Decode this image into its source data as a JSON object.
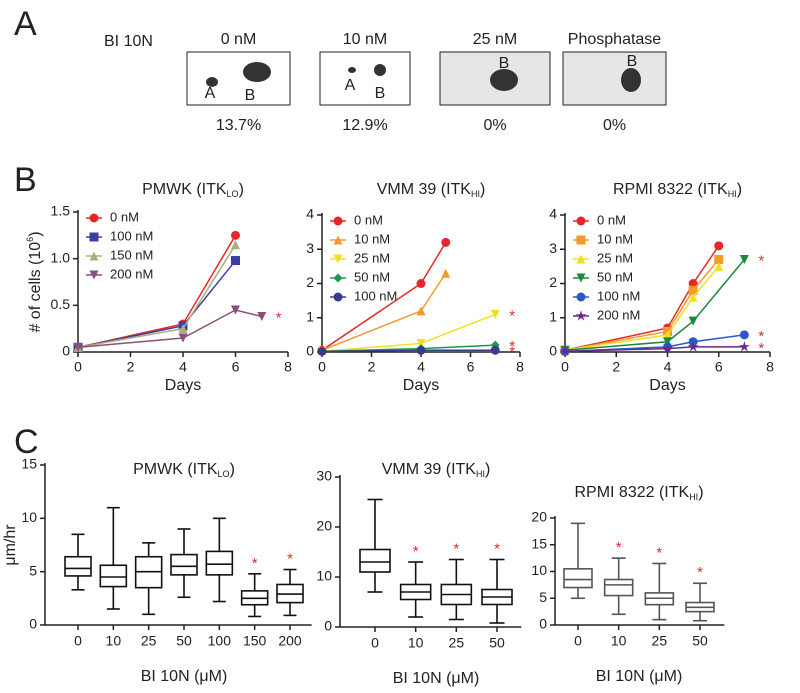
{
  "panel_a": {
    "label": "A",
    "treatment": "BI 10N",
    "blots": [
      {
        "condition": "0 nM",
        "bands": [
          "A",
          "B"
        ],
        "percent": "13.7%"
      },
      {
        "condition": "10 nM",
        "bands": [
          "A",
          "B"
        ],
        "percent": "12.9%"
      },
      {
        "condition": "25 nM",
        "bands": [
          "B"
        ],
        "percent": "0%"
      },
      {
        "condition": "Phosphatase",
        "bands": [
          "B"
        ],
        "percent": "0%"
      }
    ]
  },
  "panel_labels": [
    "B",
    "C"
  ],
  "chart_data": [
    {
      "type": "line",
      "title_parts": [
        "PMWK (ITK",
        "LO",
        ")"
      ],
      "ylabel_parts": [
        "# of cells (10",
        "6",
        ")"
      ],
      "xlabel": "Days",
      "xlim": [
        0,
        8
      ],
      "xticks": [
        0,
        2,
        4,
        6,
        8
      ],
      "ylim": [
        0,
        1.5
      ],
      "yticks": [
        0,
        0.5,
        {
          "value": 1,
          "label": "1.0"
        },
        1.5
      ],
      "legend": "upper left",
      "significance_color": "#e8262a",
      "series": [
        {
          "name": "0 nM",
          "color": "#e8262a",
          "marker": "circle",
          "x": [
            0,
            4,
            6
          ],
          "values": [
            0.05,
            0.3,
            1.25
          ],
          "significance": null
        },
        {
          "name": "100 nM",
          "color": "#3d3da8",
          "marker": "square",
          "x": [
            0,
            4,
            6
          ],
          "values": [
            0.05,
            0.28,
            0.98
          ],
          "significance": null
        },
        {
          "name": "150 nM",
          "color": "#a8b07a",
          "marker": "triangle",
          "x": [
            0,
            4,
            6
          ],
          "values": [
            0.05,
            0.25,
            1.15
          ],
          "significance": null
        },
        {
          "name": "200 nM",
          "color": "#8b4f7a",
          "marker": "down-triangle",
          "x": [
            0,
            4,
            6,
            7
          ],
          "values": [
            0.05,
            0.15,
            0.45,
            0.38
          ],
          "significance": "*"
        }
      ]
    },
    {
      "type": "line",
      "title_parts": [
        "VMM 39 (ITK",
        "HI",
        ")"
      ],
      "xlabel": "Days",
      "xlim": [
        0,
        8
      ],
      "xticks": [
        0,
        2,
        4,
        6,
        8
      ],
      "ylim": [
        0,
        4
      ],
      "yticks": [
        0,
        1,
        2,
        3,
        4
      ],
      "legend": "upper left",
      "significance_color": "#e8262a",
      "series": [
        {
          "name": "0 nM",
          "color": "#e8262a",
          "marker": "circle",
          "x": [
            0,
            4,
            5
          ],
          "values": [
            0.05,
            2.0,
            3.2
          ],
          "significance": null
        },
        {
          "name": "10 nM",
          "color": "#f39a2e",
          "marker": "triangle",
          "x": [
            0,
            4,
            5
          ],
          "values": [
            0.05,
            1.2,
            2.3
          ],
          "significance": null
        },
        {
          "name": "25 nM",
          "color": "#f0e020",
          "marker": "down-triangle",
          "x": [
            0,
            4,
            7
          ],
          "values": [
            0.02,
            0.25,
            1.1
          ],
          "significance": "*"
        },
        {
          "name": "50 nM",
          "color": "#1a9a50",
          "marker": "diamond",
          "x": [
            0,
            4,
            7
          ],
          "values": [
            0.02,
            0.1,
            0.2
          ],
          "significance": "*"
        },
        {
          "name": "100 nM",
          "color": "#3a3a8a",
          "marker": "circle",
          "x": [
            0,
            4,
            7
          ],
          "values": [
            0.02,
            0.05,
            0.05
          ],
          "significance": "*"
        }
      ]
    },
    {
      "type": "line",
      "title_parts": [
        "RPMI 8322 (ITK",
        "HI",
        ")"
      ],
      "xlabel": "Days",
      "xlim": [
        0,
        8
      ],
      "xticks": [
        0,
        2,
        4,
        6,
        8
      ],
      "ylim": [
        0,
        4
      ],
      "yticks": [
        0,
        1,
        2,
        3,
        4
      ],
      "legend": "upper left",
      "significance_color": "#e8262a",
      "series": [
        {
          "name": "0 nM",
          "color": "#e8262a",
          "marker": "circle",
          "x": [
            0,
            4,
            5,
            6
          ],
          "values": [
            0.05,
            0.7,
            2.0,
            3.1
          ],
          "significance": null
        },
        {
          "name": "10 nM",
          "color": "#f39a2e",
          "marker": "square",
          "x": [
            0,
            4,
            5,
            6
          ],
          "values": [
            0.05,
            0.6,
            1.8,
            2.7
          ],
          "significance": null
        },
        {
          "name": "25 nM",
          "color": "#f0e020",
          "marker": "triangle",
          "x": [
            0,
            4,
            5,
            6
          ],
          "values": [
            0.05,
            0.5,
            1.6,
            2.5
          ],
          "significance": null
        },
        {
          "name": "50 nM",
          "color": "#1a8a3a",
          "marker": "down-triangle",
          "x": [
            0,
            4,
            5,
            7
          ],
          "values": [
            0.05,
            0.3,
            0.9,
            2.7
          ],
          "significance": "*"
        },
        {
          "name": "100 nM",
          "color": "#2a5ac8",
          "marker": "circle",
          "x": [
            0,
            4,
            5,
            7
          ],
          "values": [
            0.02,
            0.15,
            0.3,
            0.5
          ],
          "significance": "*"
        },
        {
          "name": "200 nM",
          "color": "#6a2a8a",
          "marker": "star",
          "x": [
            0,
            4,
            5,
            7
          ],
          "values": [
            0.02,
            0.1,
            0.15,
            0.15
          ],
          "significance": "*"
        }
      ]
    },
    {
      "type": "box",
      "title_parts": [
        "PMWK (ITK",
        "LO",
        ")"
      ],
      "ylabel": "μm/hr",
      "xlabel": "BI 10N (μM)",
      "color": "#111111",
      "significance_color": "#e8262a",
      "ylim": [
        0,
        15
      ],
      "yticks": [
        0,
        5,
        10,
        15
      ],
      "categories": [
        "0",
        "10",
        "25",
        "50",
        "100",
        "150",
        "200"
      ],
      "boxes": [
        {
          "min": 3.3,
          "q1": 4.6,
          "median": 5.3,
          "q3": 6.4,
          "max": 8.5
        },
        {
          "min": 1.5,
          "q1": 3.6,
          "median": 4.5,
          "q3": 5.6,
          "max": 11
        },
        {
          "min": 1.0,
          "q1": 3.5,
          "median": 5.0,
          "q3": 6.4,
          "max": 7.7
        },
        {
          "min": 2.6,
          "q1": 4.7,
          "median": 5.5,
          "q3": 6.6,
          "max": 9
        },
        {
          "min": 2.2,
          "q1": 4.7,
          "median": 5.7,
          "q3": 6.9,
          "max": 10
        },
        {
          "min": 0.8,
          "q1": 1.9,
          "median": 2.5,
          "q3": 3.2,
          "max": 4.8
        },
        {
          "min": 0.9,
          "q1": 2.1,
          "median": 2.9,
          "q3": 3.8,
          "max": 5.2
        }
      ],
      "significance": [
        null,
        null,
        null,
        null,
        null,
        "*",
        "*"
      ]
    },
    {
      "type": "box",
      "title_parts": [
        "VMM 39 (ITK",
        "HI",
        ")"
      ],
      "xlabel": "BI 10N (μM)",
      "color": "#111111",
      "significance_color": "#e8262a",
      "ylim": [
        0,
        30
      ],
      "yticks": [
        0,
        10,
        20,
        30
      ],
      "categories": [
        "0",
        "10",
        "25",
        "50"
      ],
      "boxes": [
        {
          "min": 7,
          "q1": 11,
          "median": 13,
          "q3": 15.5,
          "max": 25.5
        },
        {
          "min": 2,
          "q1": 5.5,
          "median": 7,
          "q3": 8.5,
          "max": 13
        },
        {
          "min": 1.5,
          "q1": 4.5,
          "median": 6.5,
          "q3": 8.5,
          "max": 13.5
        },
        {
          "min": 0.8,
          "q1": 4.5,
          "median": 6,
          "q3": 7.5,
          "max": 13.5
        }
      ],
      "significance": [
        null,
        "*",
        "*",
        "*"
      ]
    },
    {
      "type": "box",
      "title_parts": [
        "RPMI 8322 (ITK",
        "HI",
        ")"
      ],
      "xlabel": "BI 10N (μM)",
      "color": "#555555",
      "significance_color": "#e8262a",
      "ylim": [
        0,
        20
      ],
      "yticks": [
        0,
        5,
        10,
        15,
        20
      ],
      "categories": [
        "0",
        "10",
        "25",
        "50"
      ],
      "boxes": [
        {
          "min": 5,
          "q1": 7,
          "median": 8.5,
          "q3": 10.5,
          "max": 19
        },
        {
          "min": 2,
          "q1": 5.5,
          "median": 7.5,
          "q3": 8.5,
          "max": 12.5
        },
        {
          "min": 1,
          "q1": 3.8,
          "median": 5,
          "q3": 6,
          "max": 11.5
        },
        {
          "min": 0.8,
          "q1": 2.5,
          "median": 3.3,
          "q3": 4.2,
          "max": 7.8
        }
      ],
      "significance": [
        null,
        "*",
        "*",
        "*"
      ]
    }
  ]
}
